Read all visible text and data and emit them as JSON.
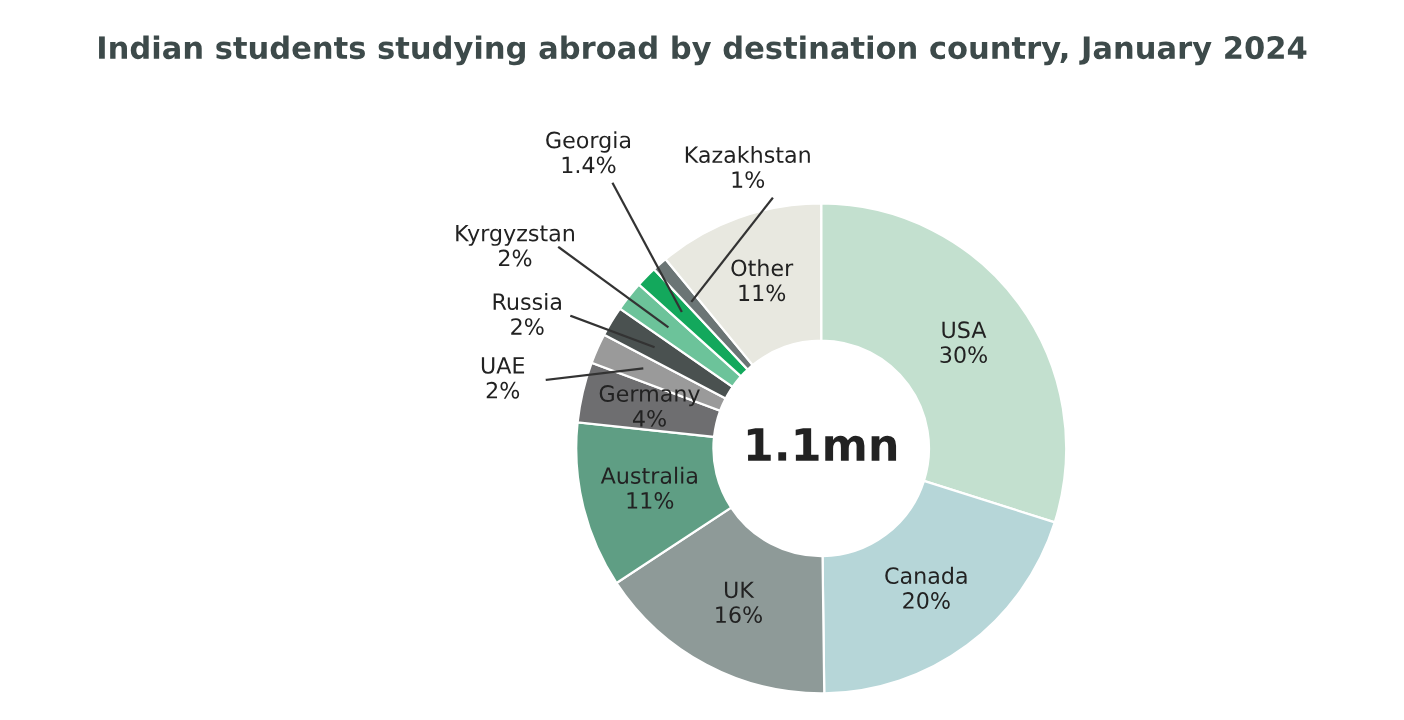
{
  "chart_data": {
    "type": "donut",
    "title": "Indian students studying abroad by destination country, January 2024",
    "categories": [
      "USA",
      "Canada",
      "UK",
      "Australia",
      "Germany",
      "UAE",
      "Russia",
      "Kyrgyzstan",
      "Georgia",
      "Kazakhstan",
      "Other"
    ],
    "values": [
      30,
      20,
      16,
      11,
      4,
      2,
      2,
      2,
      1.4,
      1,
      11
    ],
    "colors": [
      "#c3e0cf",
      "#b6d6d8",
      "#8e9a98",
      "#5f9e84",
      "#6e6e70",
      "#9a9a9a",
      "#4a5150",
      "#6cc39a",
      "#13a85c",
      "#6b7575",
      "#e8e8e0"
    ],
    "value_labels": [
      "30%",
      "20%",
      "16%",
      "11%",
      "4%",
      "2%",
      "2%",
      "2%",
      "1.4%",
      "1%",
      "11%"
    ],
    "annotations": [
      "1.1mn"
    ],
    "legend": false
  }
}
